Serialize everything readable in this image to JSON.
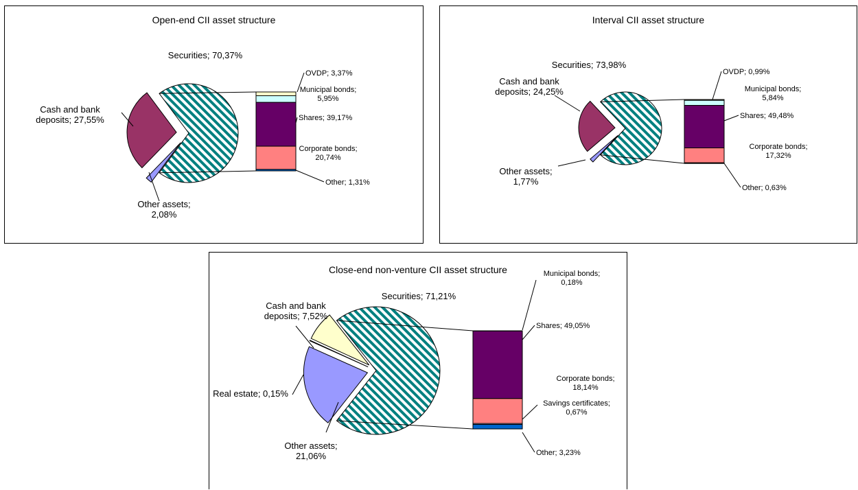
{
  "chart_data": [
    {
      "type": "pie",
      "title": "Open-end CII asset structure",
      "slices": [
        {
          "label": "Securities",
          "value": 70.37,
          "text": "Securities; 70,37%"
        },
        {
          "label": "Other assets",
          "value": 2.08,
          "text": "Other assets;\n2,08%"
        },
        {
          "label": "Cash and bank deposits",
          "value": 27.55,
          "text": "Cash and bank\ndeposits; 27,55%"
        }
      ],
      "breakdown_of": "Securities",
      "breakdown": [
        {
          "label": "OVDP",
          "value": 3.37,
          "text": "OVDP; 3,37%"
        },
        {
          "label": "Municipal bonds",
          "value": 5.95,
          "text": "Municipal bonds;\n5,95%"
        },
        {
          "label": "Shares",
          "value": 39.17,
          "text": "Shares; 39,17%"
        },
        {
          "label": "Corporate bonds",
          "value": 20.74,
          "text": "Corporate bonds;\n20,74%"
        },
        {
          "label": "Other",
          "value": 1.31,
          "text": "Other; 1,31%"
        }
      ]
    },
    {
      "type": "pie",
      "title": "Interval CII asset structure",
      "slices": [
        {
          "label": "Securities",
          "value": 73.98,
          "text": "Securities; 73,98%"
        },
        {
          "label": "Other assets",
          "value": 1.77,
          "text": "Other assets;\n1,77%"
        },
        {
          "label": "Cash and bank deposits",
          "value": 24.25,
          "text": "Cash and bank\ndeposits; 24,25%"
        }
      ],
      "breakdown_of": "Securities",
      "breakdown": [
        {
          "label": "OVDP",
          "value": 0.99,
          "text": "OVDP; 0,99%"
        },
        {
          "label": "Municipal bonds",
          "value": 5.84,
          "text": "Municipal bonds;\n5,84%"
        },
        {
          "label": "Shares",
          "value": 49.48,
          "text": "Shares; 49,48%"
        },
        {
          "label": "Corporate bonds",
          "value": 17.32,
          "text": "Corporate bonds;\n17,32%"
        },
        {
          "label": "Other",
          "value": 0.63,
          "text": "Other; 0,63%"
        }
      ]
    },
    {
      "type": "pie",
      "title": "Close-end non-venture CII asset structure",
      "slices": [
        {
          "label": "Securities",
          "value": 71.21,
          "text": "Securities; 71,21%"
        },
        {
          "label": "Other assets",
          "value": 21.06,
          "text": "Other assets;\n21,06%"
        },
        {
          "label": "Real estate",
          "value": 0.15,
          "text": "Real estate; 0,15%"
        },
        {
          "label": "Cash and bank deposits",
          "value": 7.52,
          "text": "Cash and bank\ndeposits; 7,52%"
        }
      ],
      "breakdown_of": "Securities",
      "breakdown": [
        {
          "label": "Municipal bonds",
          "value": 0.18,
          "text": "Municipal bonds;\n0,18%"
        },
        {
          "label": "Shares",
          "value": 49.05,
          "text": "Shares; 49,05%"
        },
        {
          "label": "Corporate bonds",
          "value": 18.14,
          "text": "Corporate bonds;\n18,14%"
        },
        {
          "label": "Savings certificates",
          "value": 0.67,
          "text": "Savings certificates;\n0,67%"
        },
        {
          "label": "Other",
          "value": 3.23,
          "text": "Other; 3,23%"
        }
      ]
    }
  ],
  "colors": {
    "securities_hatch": "#008080",
    "cash_open_interval": "#993366",
    "cash_close": "#ffffcc",
    "other_assets": "#9999ff",
    "real_estate": "#ccccff",
    "ovdp": "#ffffcc",
    "municipal_bonds": "#ccffff",
    "shares": "#660066",
    "corporate_bonds": "#ff8080",
    "savings_certificates": "#ccccff",
    "other": "#0066cc"
  }
}
